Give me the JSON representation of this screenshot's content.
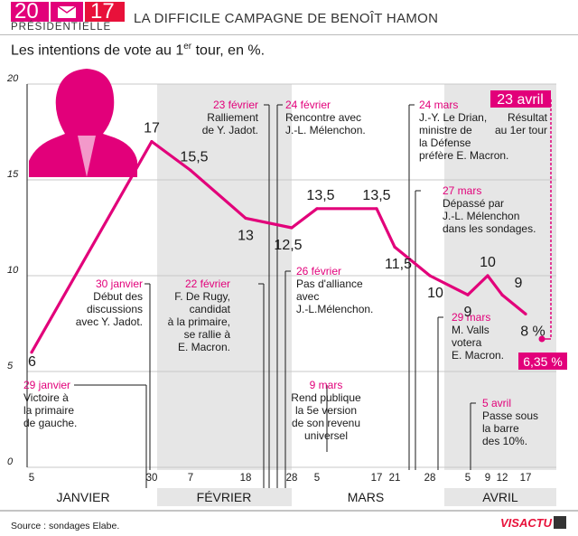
{
  "header": {
    "logo_year_left": "20",
    "logo_year_right": "17",
    "logo_sub": "PRÉSIDENTIELLE",
    "title": "LA DIFFICILE CAMPAGNE DE BENOÎT HAMON"
  },
  "subtitle": {
    "before": "Les intentions de vote au 1",
    "sup": "er",
    "after": " tour, en %."
  },
  "source": "Source : sondages Elabe.",
  "brand": "VISACTU",
  "colors": {
    "accent": "#e2007a",
    "result": "#e2007a",
    "band": "#e6e6e6",
    "grid": "#c8c8c8"
  },
  "chart_data": {
    "type": "line",
    "ylim": [
      0,
      20
    ],
    "yticks": [
      0,
      5,
      10,
      15,
      20
    ],
    "x_tick_labels": [
      "5",
      "30",
      "7",
      "18",
      "28",
      "5",
      "17",
      "21",
      "28",
      "5",
      "9",
      "12",
      "17"
    ],
    "months": [
      "JANVIER",
      "FÉVRIER",
      "MARS",
      "AVRIL"
    ],
    "series": [
      {
        "values": [
          6,
          17,
          15.5,
          13,
          12.5,
          13.5,
          13.5,
          11.5,
          10,
          9,
          10,
          9,
          8
        ],
        "labels": [
          "6",
          "17",
          "15,5",
          "13",
          "12,5",
          "13,5",
          "13,5",
          "11,5",
          "10",
          "9",
          "10",
          "9",
          "8 %"
        ]
      }
    ],
    "result": {
      "date": "23 avril",
      "value": 6.35,
      "label": "6,35 %",
      "caption": [
        "Résultat",
        "au 1er tour"
      ]
    },
    "annotations": [
      {
        "date": "29 janvier",
        "lines": [
          "Victoire à",
          "la primaire",
          "de gauche."
        ]
      },
      {
        "date": "30 janvier",
        "lines": [
          "Début des",
          "discussions",
          "avec Y. Jadot."
        ]
      },
      {
        "date": "22 février",
        "lines": [
          "F. De Rugy,",
          "candidat",
          "à la primaire,",
          "se rallie à",
          "E. Macron."
        ]
      },
      {
        "date": "23 février",
        "lines": [
          "Ralliement",
          "de Y. Jadot."
        ]
      },
      {
        "date": "24 février",
        "lines": [
          "Rencontre avec",
          "J.-L. Mélenchon."
        ]
      },
      {
        "date": "26 février",
        "lines": [
          "Pas d'alliance",
          "avec",
          "J.-L.Mélenchon."
        ]
      },
      {
        "date": "9 mars",
        "lines": [
          "Rend publique",
          "la 5e version",
          "de son revenu",
          "universel"
        ]
      },
      {
        "date": "24 mars",
        "lines": [
          "J.-Y. Le Drian,",
          "ministre de",
          "la Défense",
          "préfère E. Macron."
        ]
      },
      {
        "date": "27 mars",
        "lines": [
          "Dépassé par",
          "J.-L. Mélenchon",
          "dans les sondages."
        ]
      },
      {
        "date": "29 mars",
        "lines": [
          "M. Valls",
          "votera",
          "E. Macron."
        ]
      },
      {
        "date": "5 avril",
        "lines": [
          "Passe sous",
          "la barre",
          "des 10%."
        ]
      }
    ]
  }
}
